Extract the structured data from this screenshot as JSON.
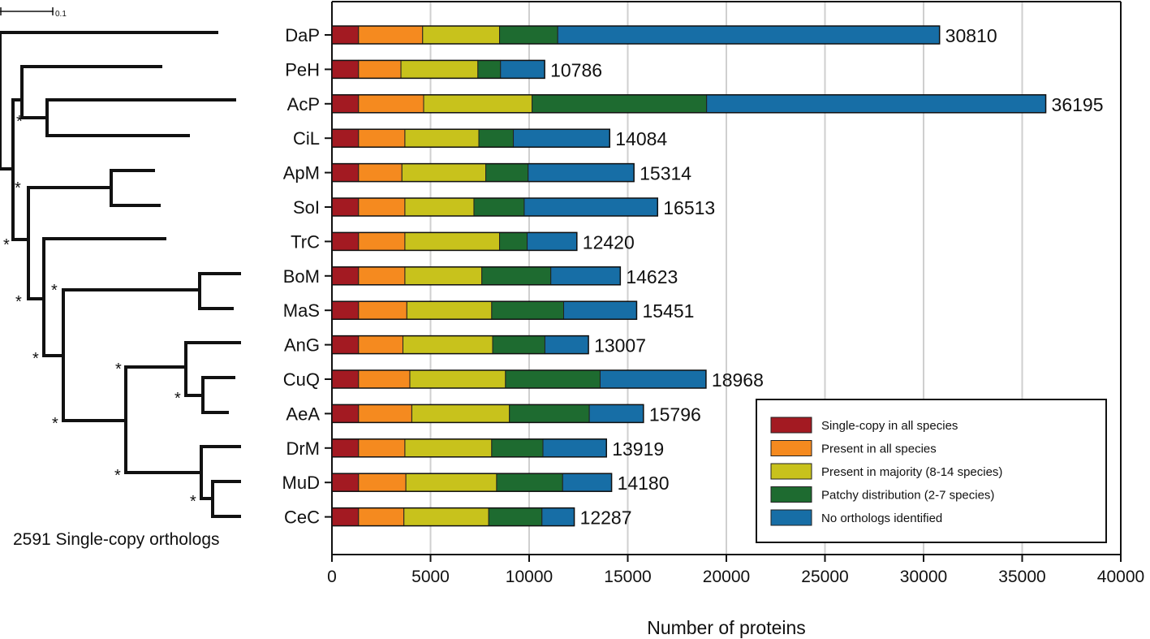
{
  "chart_data": {
    "type": "bar",
    "stacked": true,
    "orientation": "horizontal",
    "title": "",
    "xlabel": "Number of proteins",
    "ylabel": "",
    "xlim": [
      0,
      40000
    ],
    "xticks": [
      0,
      5000,
      10000,
      15000,
      20000,
      25000,
      30000,
      35000,
      40000
    ],
    "grid": "vertical",
    "legend_position": "bottom-right",
    "categories": [
      "DaP",
      "PeH",
      "AcP",
      "CiL",
      "ApM",
      "SoI",
      "TrC",
      "BoM",
      "MaS",
      "AnG",
      "CuQ",
      "AeA",
      "DrM",
      "MuD",
      "CeC"
    ],
    "totals": [
      30810,
      10786,
      36195,
      14084,
      15314,
      16513,
      12420,
      14623,
      15451,
      13007,
      18968,
      15796,
      13919,
      14180,
      12287
    ],
    "series": [
      {
        "name": "Single-copy in all species",
        "color": "#a31a22",
        "values": [
          1350,
          1350,
          1350,
          1350,
          1350,
          1350,
          1350,
          1350,
          1350,
          1350,
          1350,
          1350,
          1350,
          1350,
          1350
        ]
      },
      {
        "name": "Present in all species",
        "color": "#f58a1f",
        "values": [
          3250,
          2150,
          3300,
          2350,
          2200,
          2350,
          2350,
          2350,
          2450,
          2250,
          2600,
          2700,
          2350,
          2400,
          2300
        ]
      },
      {
        "name": "Present in majority (8-14 species)",
        "color": "#c8c21c",
        "values": [
          3900,
          3900,
          5500,
          3750,
          4250,
          3500,
          4800,
          3900,
          4300,
          4550,
          4850,
          4950,
          4400,
          4600,
          4300
        ]
      },
      {
        "name": "Patchy distribution (2-7 species)",
        "color": "#1e6b30",
        "values": [
          2950,
          1150,
          8850,
          1750,
          2150,
          2550,
          1400,
          3500,
          3650,
          2650,
          4800,
          4050,
          2600,
          3350,
          2700
        ]
      },
      {
        "name": "No orthologs identified",
        "color": "#176ea6",
        "values": [
          19360,
          2236,
          17195,
          4884,
          5364,
          6763,
          2520,
          3523,
          3701,
          2207,
          5368,
          2746,
          3219,
          2480,
          1637
        ]
      }
    ],
    "tree": {
      "scale_label": "0.1",
      "support_marker": "*",
      "caption": "2591 Single-copy orthologs"
    }
  }
}
